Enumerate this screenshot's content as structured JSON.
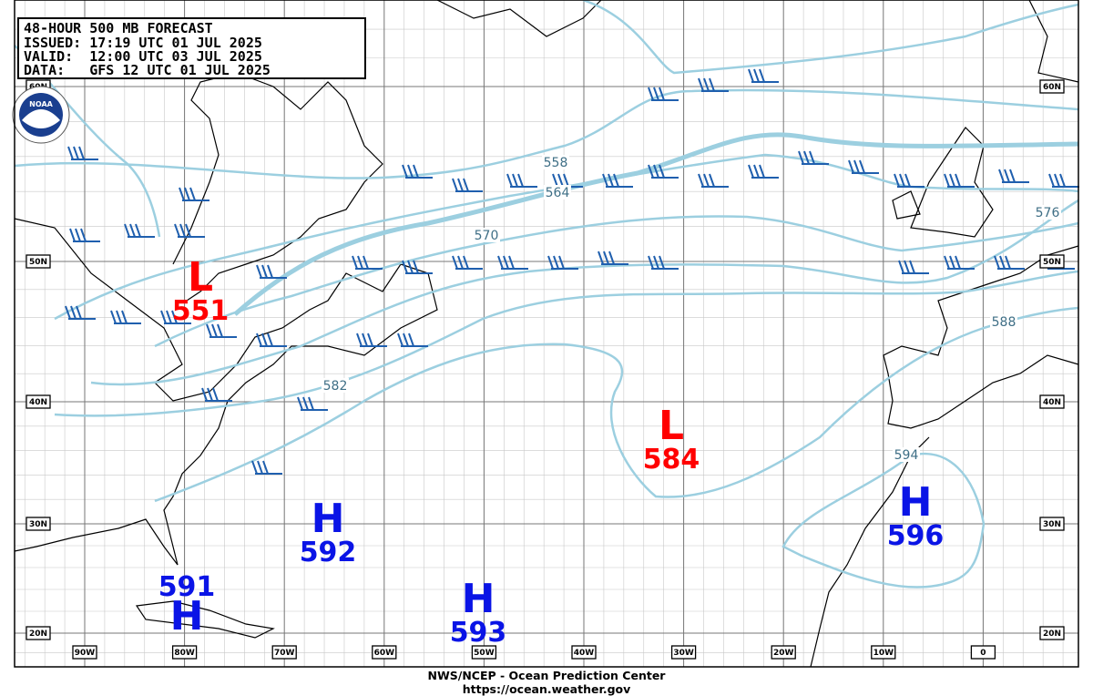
{
  "header": {
    "lines": [
      "48-HOUR 500 MB FORECAST",
      "ISSUED: 17:19 UTC 01 JUL 2025",
      "VALID:  12:00 UTC 03 JUL 2025",
      "DATA:   GFS 12 UTC 01 JUL 2025"
    ]
  },
  "logo": "NOAA",
  "centers": [
    {
      "type": "L",
      "value": "551"
    },
    {
      "type": "L",
      "value": "584"
    },
    {
      "type": "H",
      "value": "592"
    },
    {
      "type": "H",
      "value": "593"
    },
    {
      "type": "H",
      "value": "591"
    },
    {
      "type": "H",
      "value": "596"
    }
  ],
  "contour_labels": [
    "558",
    "564",
    "570",
    "576",
    "582",
    "588",
    "594"
  ],
  "lon_labels": [
    "90W",
    "80W",
    "70W",
    "60W",
    "50W",
    "40W",
    "30W",
    "20W",
    "10W",
    "0"
  ],
  "lat_labels": [
    "60N",
    "50N",
    "40N",
    "30N",
    "20N"
  ],
  "footer": [
    "NWS/NCEP - Ocean Prediction Center",
    "https://ocean.weather.gov"
  ]
}
